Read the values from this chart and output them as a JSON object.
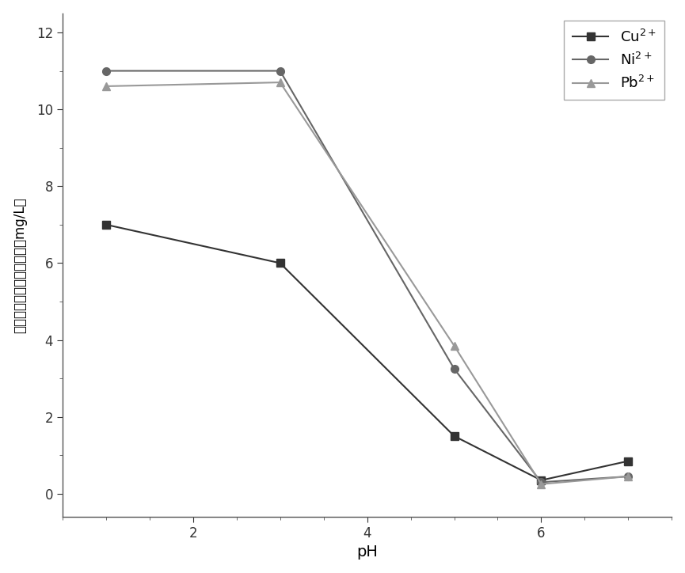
{
  "title": "",
  "xlabel": "pH",
  "ylabel_chinese": "滤液中剩余金属离子浓度",
  "ylabel_unit": "(mg/L)",
  "xlim": [
    0.5,
    7.5
  ],
  "ylim": [
    -0.6,
    12.5
  ],
  "xticks": [
    2,
    4,
    6
  ],
  "yticks": [
    0,
    2,
    4,
    6,
    8,
    10,
    12
  ],
  "series": [
    {
      "label": "Cu",
      "x": [
        1,
        3,
        5,
        6,
        7
      ],
      "y": [
        7.0,
        6.0,
        1.5,
        0.35,
        0.85
      ],
      "color": "#333333",
      "marker": "s",
      "markersize": 7,
      "linewidth": 1.5,
      "linestyle": "-"
    },
    {
      "label": "Ni",
      "x": [
        1,
        3,
        5,
        6,
        7
      ],
      "y": [
        11.0,
        11.0,
        3.25,
        0.3,
        0.45
      ],
      "color": "#666666",
      "marker": "o",
      "markersize": 7,
      "linewidth": 1.5,
      "linestyle": "-"
    },
    {
      "label": "Pb",
      "x": [
        1,
        3,
        5,
        6,
        7
      ],
      "y": [
        10.6,
        10.7,
        3.85,
        0.25,
        0.45
      ],
      "color": "#999999",
      "marker": "^",
      "markersize": 7,
      "linewidth": 1.5,
      "linestyle": "-"
    }
  ],
  "legend_loc": "upper right",
  "background_color": "#ffffff",
  "figure_background": "#ffffff"
}
